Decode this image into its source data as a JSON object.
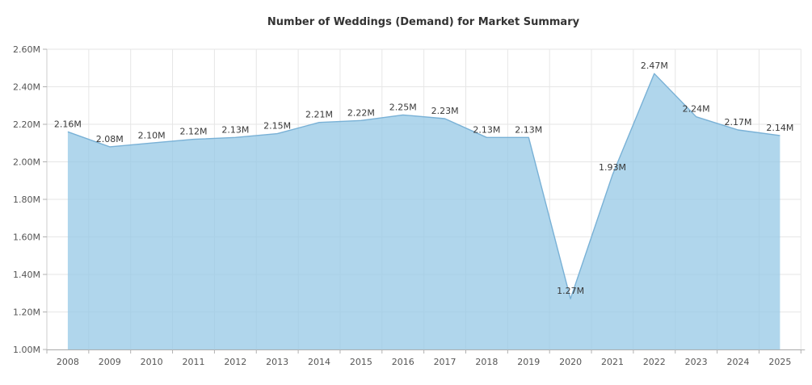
{
  "chart_data": {
    "type": "area",
    "title": "Number of Weddings (Demand) for Market Summary",
    "categories": [
      "2008",
      "2009",
      "2010",
      "2011",
      "2012",
      "2013",
      "2014",
      "2015",
      "2016",
      "2017",
      "2018",
      "2019",
      "2020",
      "2021",
      "2022",
      "2023",
      "2024",
      "2025"
    ],
    "series": [
      {
        "name": "Number of Weddings",
        "values": [
          2.16,
          2.08,
          2.1,
          2.12,
          2.13,
          2.15,
          2.21,
          2.22,
          2.25,
          2.23,
          2.13,
          2.13,
          1.27,
          1.93,
          2.47,
          2.24,
          2.17,
          2.14
        ],
        "point_labels": [
          "2.16M",
          "2.08M",
          "2.10M",
          "2.12M",
          "2.13M",
          "2.15M",
          "2.21M",
          "2.22M",
          "2.25M",
          "2.23M",
          "2.13M",
          "2.13M",
          "1.27M",
          "1.93M",
          "2.47M",
          "2.24M",
          "2.17M",
          "2.14M"
        ]
      }
    ],
    "xlabel": "",
    "ylabel": "",
    "y_axis": {
      "min": 1.0,
      "max": 2.6,
      "tick_interval": 0.2,
      "tick_labels": [
        "1.00M",
        "1.20M",
        "1.40M",
        "1.60M",
        "1.80M",
        "2.00M",
        "2.20M",
        "2.40M",
        "2.60M"
      ]
    },
    "grid": true,
    "legend_position": "none",
    "colors": {
      "area_fill": "#96c8e6",
      "area_fill_opacity": 0.75,
      "line_stroke": "#79b1d6",
      "gridline": "#e6e6e6",
      "axis_line": "#b0b0b0",
      "y_axis_line": "#cccccc",
      "tick": "#b0b0b0",
      "title_color": "#333333",
      "axis_label_color": "#555555",
      "data_label_color": "#383838"
    }
  }
}
